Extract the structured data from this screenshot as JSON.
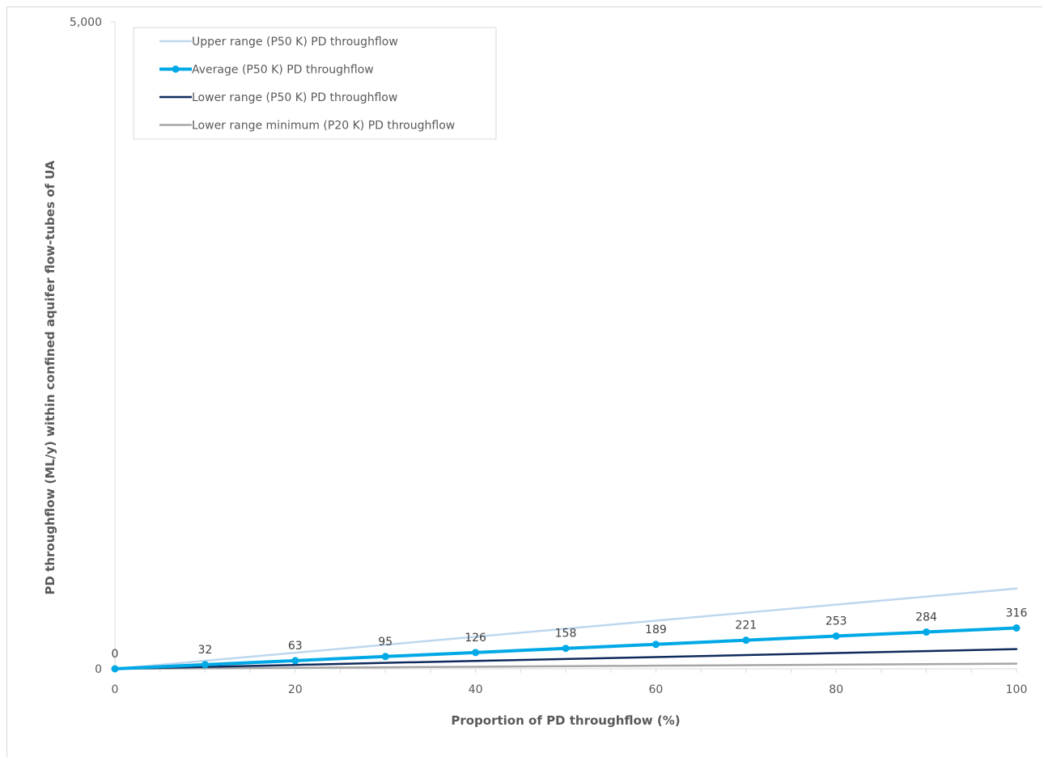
{
  "chart_data": {
    "type": "line",
    "title": "",
    "xlabel": "Proportion of PD throughflow (%)",
    "ylabel": "PD throughflow (ML/y) within confined aquifer flow-tubes of UA",
    "xlim": [
      0,
      100
    ],
    "ylim": [
      0,
      5000
    ],
    "x_ticks": [
      "0",
      "20",
      "40",
      "60",
      "80",
      "100"
    ],
    "y_ticks": [
      "0",
      "5,000"
    ],
    "grid": false,
    "legend_position": "top-left",
    "x": [
      0,
      10,
      20,
      30,
      40,
      50,
      60,
      70,
      80,
      90,
      100
    ],
    "series": [
      {
        "name": "Upper range (P50 K) PD throughflow",
        "color": "#bdd7ee",
        "markers": false,
        "values": [
          0,
          62,
          124,
          186,
          248,
          310,
          372,
          434,
          496,
          558,
          620
        ]
      },
      {
        "name": "Average (P50 K) PD throughflow",
        "color": "#00a9e6",
        "markers": true,
        "values": [
          0,
          32,
          63,
          95,
          126,
          158,
          189,
          221,
          253,
          284,
          316
        ],
        "data_labels": [
          "0",
          "32",
          "63",
          "95",
          "126",
          "158",
          "189",
          "221",
          "253",
          "284",
          "316"
        ]
      },
      {
        "name": "Lower range (P50 K) PD throughflow",
        "color": "#0f2a5c",
        "markers": false,
        "values": [
          0,
          15,
          30,
          46,
          61,
          76,
          91,
          106,
          122,
          137,
          152
        ]
      },
      {
        "name": "Lower range minimum (P20 K) PD throughflow",
        "color": "#a6a6a6",
        "markers": false,
        "values": [
          0,
          4,
          8,
          12,
          16,
          20,
          24,
          28,
          32,
          36,
          40
        ]
      }
    ]
  }
}
